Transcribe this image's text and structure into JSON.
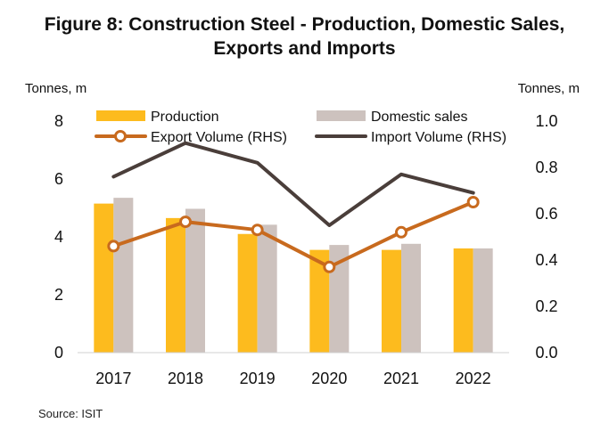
{
  "chart_data": {
    "type": "bar",
    "title_lines": [
      "Figure 8: Construction Steel - Production, Domestic Sales,",
      "Exports and Imports"
    ],
    "ylabel_left": "Tonnes, m",
    "ylabel_right": "Tonnes, m",
    "categories": [
      "2017",
      "2018",
      "2019",
      "2020",
      "2021",
      "2022"
    ],
    "ylim_left": [
      0,
      8
    ],
    "yticks_left": [
      "0",
      "2",
      "4",
      "6",
      "8"
    ],
    "ylim_right": [
      0,
      1.0
    ],
    "yticks_right": [
      "0.0",
      "0.2",
      "0.4",
      "0.6",
      "0.8",
      "1.0"
    ],
    "grid": false,
    "legend_position": "top",
    "series": [
      {
        "name": "Production",
        "type": "bar",
        "axis": "left",
        "color": "#FDBB1E",
        "values": [
          5.15,
          4.65,
          4.1,
          3.55,
          3.55,
          3.6
        ]
      },
      {
        "name": "Domestic sales",
        "type": "bar",
        "axis": "left",
        "color": "#CDC2BE",
        "values": [
          5.35,
          4.97,
          4.42,
          3.72,
          3.76,
          3.6
        ]
      },
      {
        "name": "Export Volume (RHS)",
        "type": "line",
        "axis": "right",
        "color": "#C86A1E",
        "marker": "circle",
        "values": [
          0.46,
          0.565,
          0.53,
          0.37,
          0.52,
          0.65
        ]
      },
      {
        "name": "Import Volume (RHS)",
        "type": "line",
        "axis": "right",
        "color": "#4A3E3A",
        "values": [
          0.76,
          0.905,
          0.82,
          0.55,
          0.77,
          0.69
        ]
      }
    ],
    "source": "Source: ISIT"
  }
}
